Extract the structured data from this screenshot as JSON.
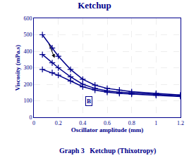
{
  "chart_data": {
    "type": "line",
    "title": "Ketchup",
    "xlabel": "Oscillator amplitude (mm)",
    "ylabel": "Viscosity (mPa.s)",
    "caption": "Graph 3   Ketchup (Thixotropy)",
    "x": [
      0.07,
      0.15,
      0.2,
      0.3,
      0.4,
      0.5,
      0.6,
      0.7,
      0.8,
      1.0,
      1.2
    ],
    "series": [
      {
        "color": "#00008B",
        "values": [
          500,
          420,
          370,
          290,
          230,
          195,
          175,
          165,
          155,
          145,
          135
        ]
      },
      {
        "color": "#00008B",
        "values": [
          380,
          330,
          300,
          245,
          200,
          175,
          160,
          152,
          147,
          138,
          130
        ]
      },
      {
        "color": "#00008B",
        "values": [
          290,
          270,
          255,
          220,
          185,
          165,
          152,
          145,
          140,
          133,
          126
        ]
      }
    ],
    "marker": "plus",
    "line_style": "solid",
    "xlim": [
      0,
      1.2
    ],
    "ylim": [
      0,
      600
    ],
    "xticks": [
      0,
      0.2,
      0.4,
      0.6,
      0.8,
      1,
      1.2
    ],
    "yticks": [
      0,
      100,
      200,
      300,
      400,
      500,
      600
    ],
    "grid": true,
    "annotations": [
      {
        "text": "B",
        "x": 0.45,
        "y": 100,
        "color": "#00008B"
      },
      {
        "x": 0.17,
        "y": 360,
        "ax": 0.12,
        "ay": 450,
        "color": "#000000"
      }
    ]
  }
}
